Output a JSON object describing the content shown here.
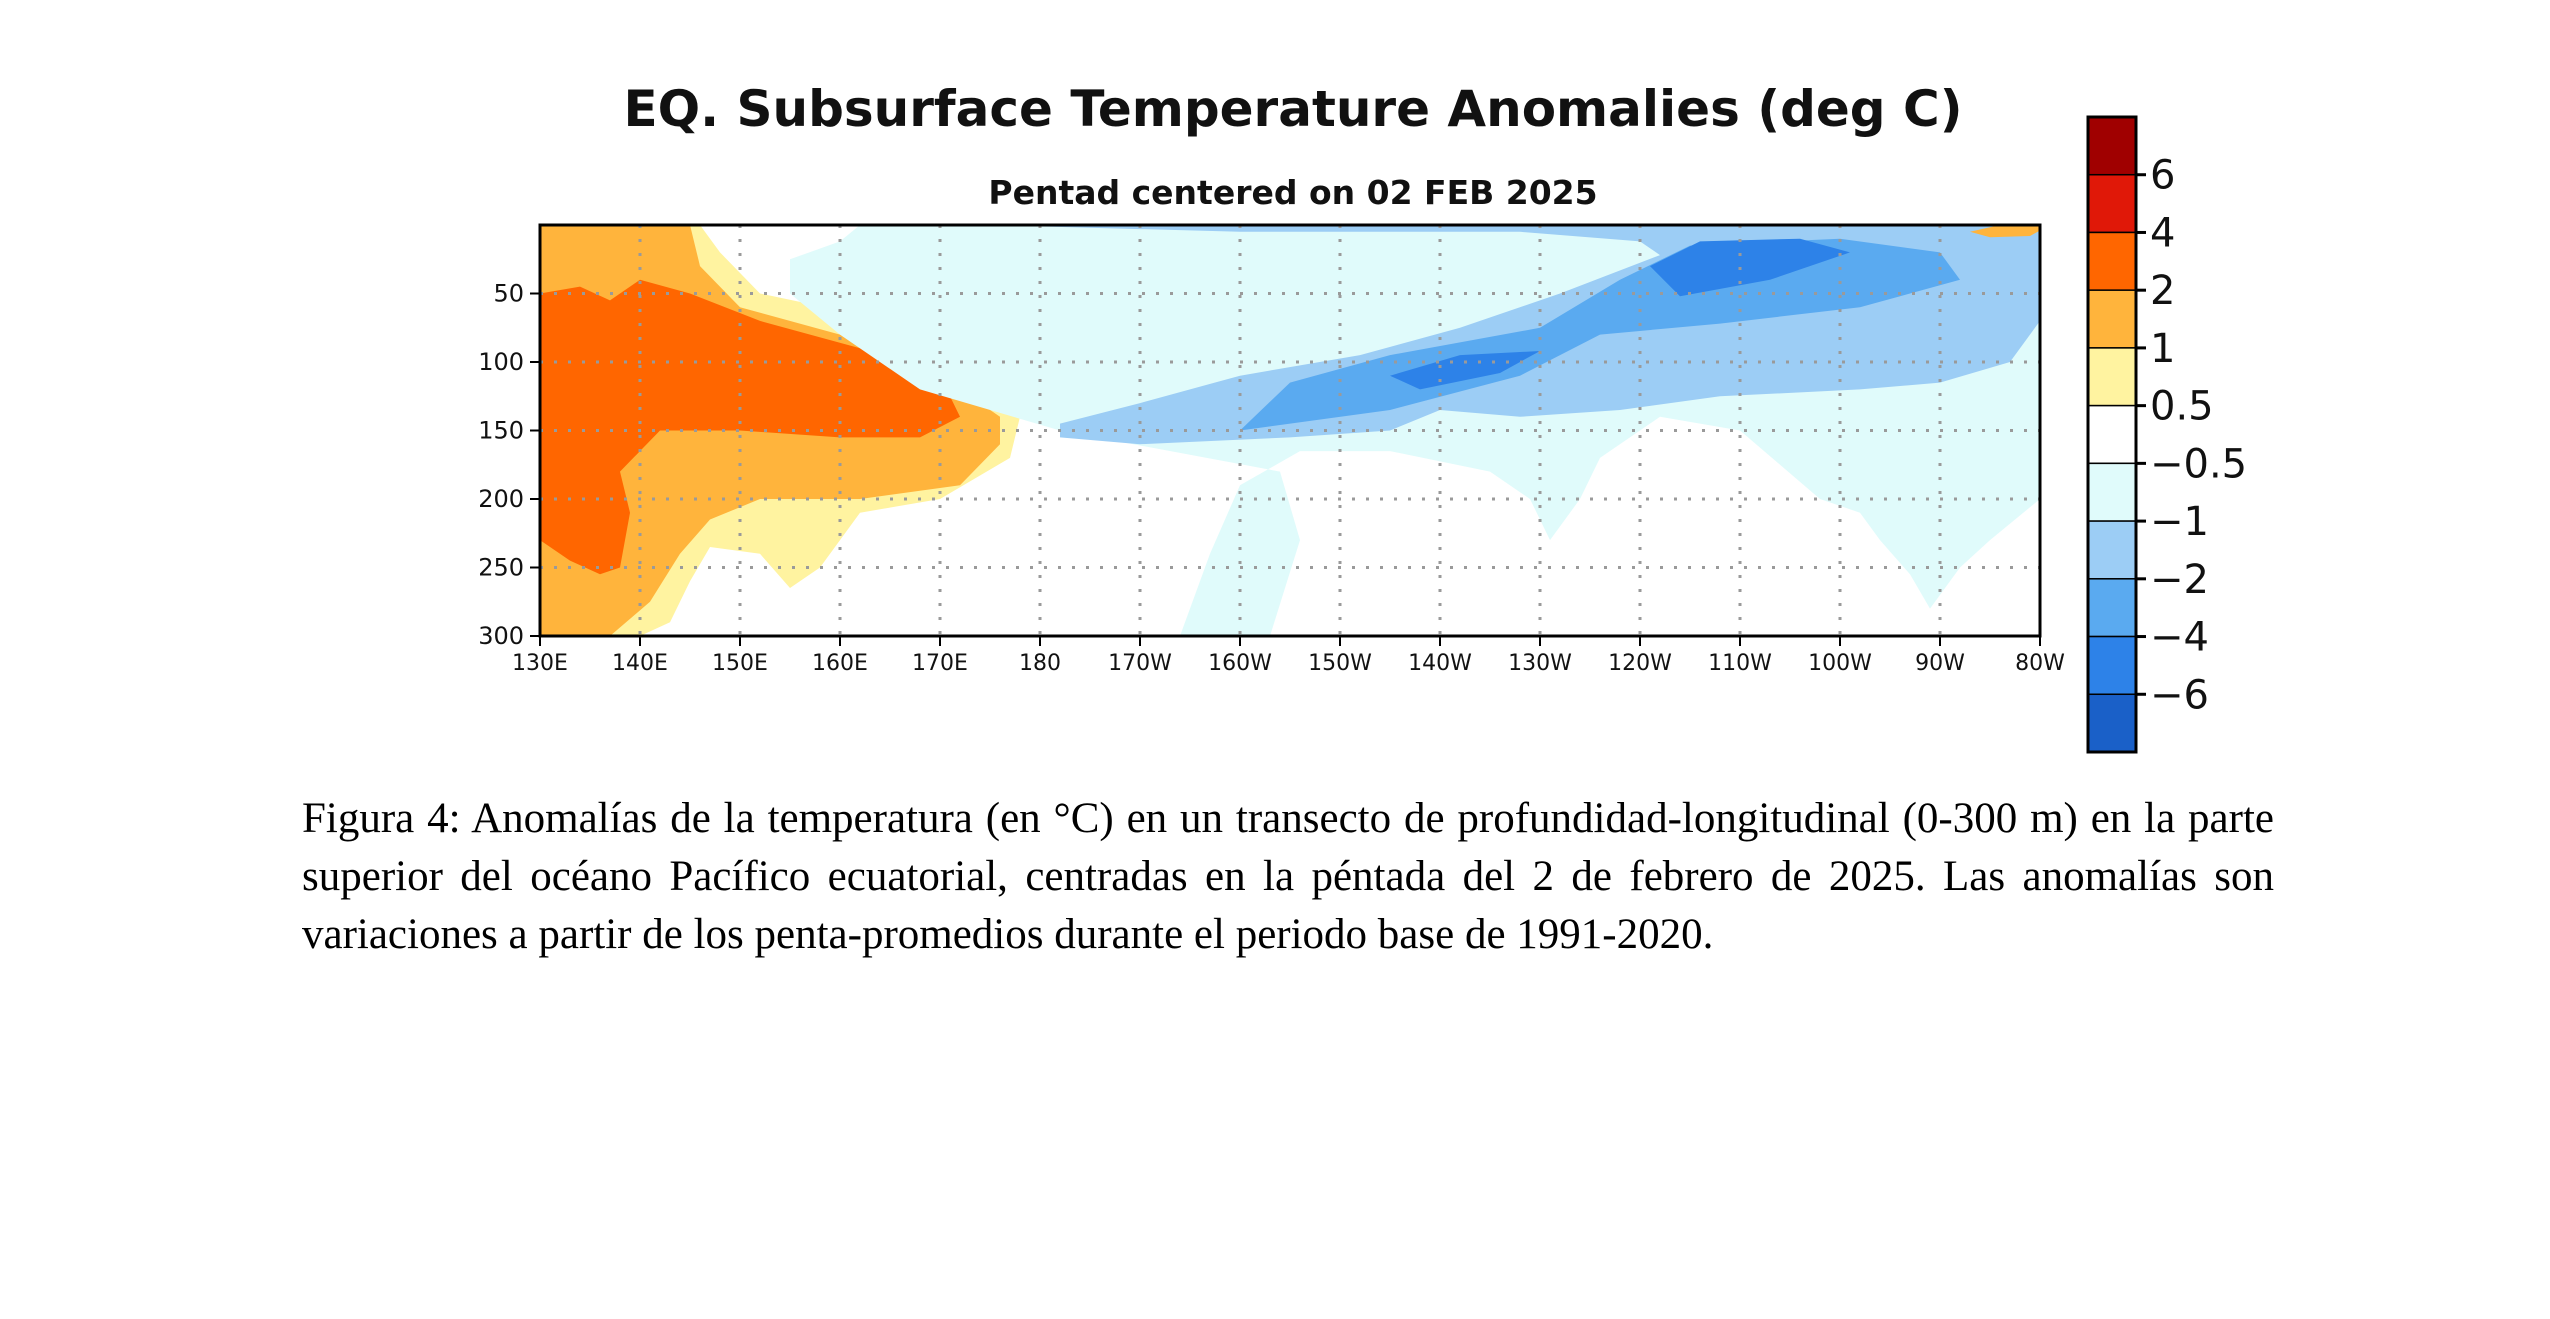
{
  "chart_data": {
    "type": "heatmap",
    "title": "EQ. Subsurface Temperature Anomalies (deg C)",
    "subtitle": "Pentad centered on 02 FEB 2025",
    "xlabel": "",
    "ylabel": "",
    "x_range": [
      130,
      280
    ],
    "y_range": [
      0,
      300
    ],
    "y_inverted": true,
    "x_ticks": [
      {
        "value": 130,
        "label": "130E"
      },
      {
        "value": 140,
        "label": "140E"
      },
      {
        "value": 150,
        "label": "150E"
      },
      {
        "value": 160,
        "label": "160E"
      },
      {
        "value": 170,
        "label": "170E"
      },
      {
        "value": 180,
        "label": "180"
      },
      {
        "value": 190,
        "label": "170W"
      },
      {
        "value": 200,
        "label": "160W"
      },
      {
        "value": 210,
        "label": "150W"
      },
      {
        "value": 220,
        "label": "140W"
      },
      {
        "value": 230,
        "label": "130W"
      },
      {
        "value": 240,
        "label": "120W"
      },
      {
        "value": 250,
        "label": "110W"
      },
      {
        "value": 260,
        "label": "100W"
      },
      {
        "value": 270,
        "label": "90W"
      },
      {
        "value": 280,
        "label": "80W"
      }
    ],
    "y_ticks": [
      {
        "value": 50,
        "label": "50"
      },
      {
        "value": 100,
        "label": "100"
      },
      {
        "value": 150,
        "label": "150"
      },
      {
        "value": 200,
        "label": "200"
      },
      {
        "value": 250,
        "label": "250"
      },
      {
        "value": 300,
        "label": "300"
      }
    ],
    "grid": true,
    "colorbar": {
      "placement": "right",
      "labels": [
        "6",
        "4",
        "2",
        "1",
        "0.5",
        "−0.5",
        "−1",
        "−2",
        "−4",
        "−6"
      ],
      "colors": [
        "#a00000",
        "#e01808",
        "#ff6600",
        "#ffb43c",
        "#fff3a0",
        "#ffffff",
        "#e0fbfb",
        "#9ccdf5",
        "#5aaaf0",
        "#2d82e8",
        "#1a60c8"
      ]
    },
    "regions": [
      {
        "level": 2,
        "name": "west-warm-outer",
        "polygon": [
          [
            130,
            0
          ],
          [
            146,
            0
          ],
          [
            148,
            20
          ],
          [
            152,
            50
          ],
          [
            165,
            70
          ],
          [
            174,
            100
          ],
          [
            178,
            140
          ],
          [
            177,
            170
          ],
          [
            170,
            200
          ],
          [
            162,
            210
          ],
          [
            158,
            250
          ],
          [
            155,
            265
          ],
          [
            152,
            240
          ],
          [
            147,
            235
          ],
          [
            145,
            260
          ],
          [
            143,
            290
          ],
          [
            140,
            300
          ],
          [
            130,
            300
          ]
        ]
      },
      {
        "level": 1,
        "name": "west-warm-mid",
        "polygon": [
          [
            130,
            0
          ],
          [
            145,
            0
          ],
          [
            146,
            30
          ],
          [
            150,
            60
          ],
          [
            160,
            80
          ],
          [
            170,
            110
          ],
          [
            176,
            140
          ],
          [
            176,
            160
          ],
          [
            172,
            190
          ],
          [
            162,
            200
          ],
          [
            152,
            200
          ],
          [
            147,
            215
          ],
          [
            144,
            240
          ],
          [
            141,
            275
          ],
          [
            137,
            300
          ],
          [
            130,
            300
          ]
        ]
      },
      {
        "level": 0,
        "name": "west-warm-core",
        "polygon": [
          [
            130,
            50
          ],
          [
            134,
            45
          ],
          [
            137,
            55
          ],
          [
            140,
            40
          ],
          [
            145,
            50
          ],
          [
            152,
            70
          ],
          [
            162,
            90
          ],
          [
            171,
            125
          ],
          [
            172,
            140
          ],
          [
            168,
            155
          ],
          [
            160,
            155
          ],
          [
            150,
            150
          ],
          [
            142,
            150
          ],
          [
            138,
            180
          ],
          [
            139,
            210
          ],
          [
            138,
            250
          ],
          [
            136,
            255
          ],
          [
            133,
            245
          ],
          [
            130,
            230
          ]
        ]
      },
      {
        "level": 6,
        "name": "east-cool-outer",
        "polygon": [
          [
            162,
            0
          ],
          [
            280,
            0
          ],
          [
            280,
            200
          ],
          [
            275,
            230
          ],
          [
            272,
            250
          ],
          [
            269,
            280
          ],
          [
            267,
            255
          ],
          [
            264,
            230
          ],
          [
            262,
            210
          ],
          [
            258,
            200
          ],
          [
            250,
            150
          ],
          [
            242,
            140
          ],
          [
            236,
            170
          ],
          [
            234,
            200
          ],
          [
            231,
            230
          ],
          [
            229,
            200
          ],
          [
            225,
            180
          ],
          [
            215,
            165
          ],
          [
            206,
            165
          ],
          [
            200,
            190
          ],
          [
            197,
            240
          ],
          [
            194,
            300
          ],
          [
            203,
            300
          ],
          [
            206,
            230
          ],
          [
            204,
            180
          ],
          [
            182,
            150
          ],
          [
            168,
            120
          ],
          [
            160,
            80
          ],
          [
            155,
            50
          ],
          [
            155,
            25
          ],
          [
            160,
            12
          ]
        ]
      },
      {
        "level": 7,
        "name": "east-cool-mid",
        "polygon": [
          [
            175,
            0
          ],
          [
            280,
            0
          ],
          [
            280,
            70
          ],
          [
            277,
            100
          ],
          [
            270,
            115
          ],
          [
            262,
            120
          ],
          [
            248,
            125
          ],
          [
            238,
            135
          ],
          [
            228,
            140
          ],
          [
            220,
            135
          ],
          [
            215,
            150
          ],
          [
            205,
            155
          ],
          [
            190,
            160
          ],
          [
            182,
            155
          ],
          [
            182,
            145
          ],
          [
            190,
            130
          ],
          [
            200,
            110
          ],
          [
            212,
            95
          ],
          [
            222,
            75
          ],
          [
            232,
            50
          ],
          [
            242,
            22
          ],
          [
            240,
            12
          ],
          [
            228,
            5
          ],
          [
            200,
            5
          ]
        ]
      },
      {
        "level": 8,
        "name": "east-cool-deep-a",
        "polygon": [
          [
            200,
            150
          ],
          [
            205,
            115
          ],
          [
            215,
            95
          ],
          [
            230,
            75
          ],
          [
            238,
            40
          ],
          [
            245,
            15
          ],
          [
            260,
            10
          ],
          [
            270,
            20
          ],
          [
            272,
            40
          ],
          [
            262,
            60
          ],
          [
            248,
            72
          ],
          [
            236,
            80
          ],
          [
            228,
            110
          ],
          [
            215,
            135
          ]
        ]
      },
      {
        "level": 9,
        "name": "east-cool-core-a",
        "polygon": [
          [
            241,
            30
          ],
          [
            246,
            12
          ],
          [
            256,
            10
          ],
          [
            261,
            20
          ],
          [
            253,
            40
          ],
          [
            244,
            52
          ]
        ]
      },
      {
        "level": 9,
        "name": "east-cool-core-b",
        "polygon": [
          [
            215,
            110
          ],
          [
            222,
            95
          ],
          [
            230,
            92
          ],
          [
            226,
            108
          ],
          [
            218,
            120
          ]
        ]
      },
      {
        "level": 3,
        "name": "east-warm-patch",
        "polygon": [
          [
            273,
            5
          ],
          [
            276,
            0
          ],
          [
            281,
            0
          ],
          [
            279,
            8
          ],
          [
            275,
            9
          ]
        ]
      }
    ]
  },
  "caption": "Figura 4: Anomalías de la temperatura (en °C) en un transecto de profundidad-longitudinal (0-300 m) en la parte superior del océano Pacífico ecuatorial, centradas en la péntada del 2 de febrero de 2025. Las anomalías son variaciones a partir de los penta-promedios durante el periodo base de 1991-2020."
}
